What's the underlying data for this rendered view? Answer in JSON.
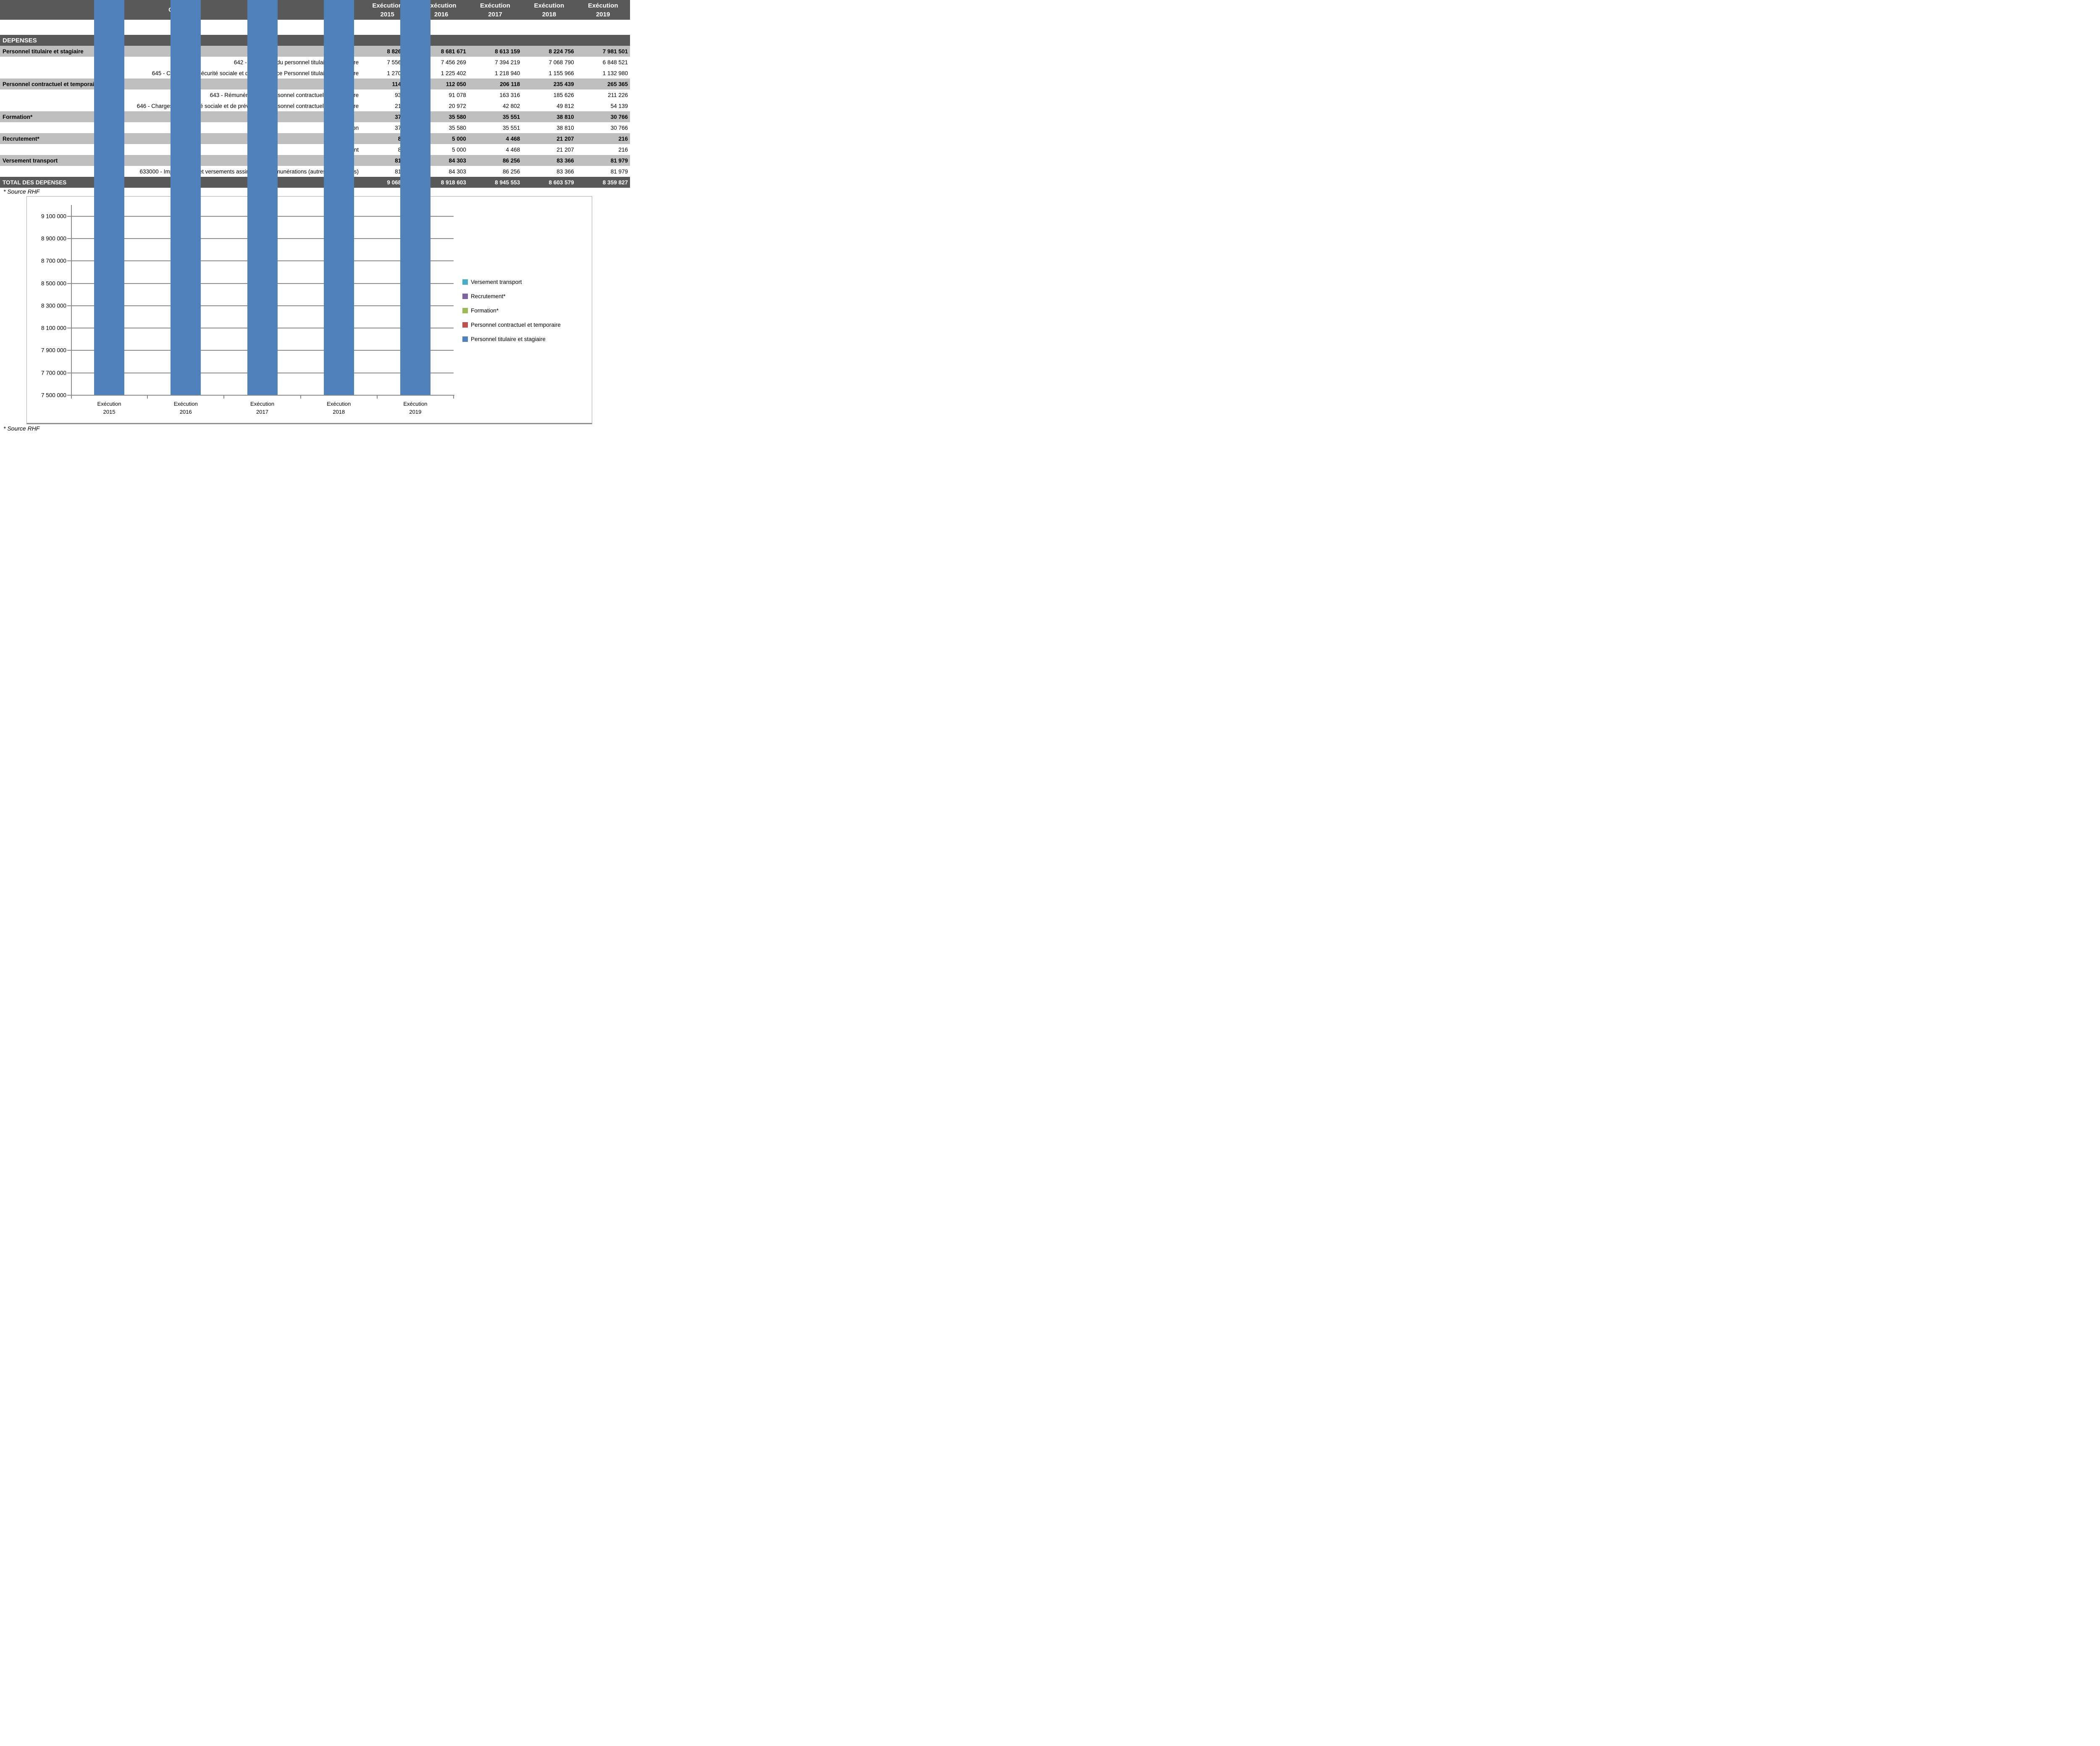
{
  "table": {
    "header": {
      "account_label": "Compte",
      "col_word": "Exécution",
      "years": [
        "2015",
        "2016",
        "2017",
        "2018",
        "2019"
      ]
    },
    "rows": [
      {
        "label": "DEPENSES",
        "type": "section",
        "values": [
          "",
          "",
          "",
          "",
          ""
        ]
      },
      {
        "label": "Personnel titulaire et stagiaire",
        "type": "category",
        "values": [
          "8 826 918",
          "8 681 671",
          "8 613 159",
          "8 224 756",
          "7 981 501"
        ]
      },
      {
        "label": "642 - Traitement du personnel titulaire et stagiaire",
        "type": "detail",
        "values": [
          "7 556 169",
          "7 456 269",
          "7 394 219",
          "7 068 790",
          "6 848 521"
        ]
      },
      {
        "label": "645 - Charges de Sécurité sociale et de prévoyance Personnel titulaire et stagiaire",
        "type": "detail",
        "values": [
          "1 270 749",
          "1 225 402",
          "1 218 940",
          "1 155 966",
          "1 132 980"
        ]
      },
      {
        "label": "Personnel contractuel et temporaire",
        "type": "category",
        "values": [
          "114 754",
          "112 050",
          "206 118",
          "235 439",
          "265 365"
        ]
      },
      {
        "label": "643 - Rémunération du personnel contractuel et temporaire",
        "type": "detail",
        "values": [
          "93 182",
          "91 078",
          "163 316",
          "185 626",
          "211 226"
        ]
      },
      {
        "label": "646 - Charges de Sécurité sociale et de prévoyance Personnel contractuel et temporaire",
        "type": "detail",
        "values": [
          "21 572",
          "20 972",
          "42 802",
          "49 812",
          "54 139"
        ]
      },
      {
        "label": "Formation*",
        "type": "category",
        "values": [
          "37 376",
          "35 580",
          "35 551",
          "38 810",
          "30 766"
        ]
      },
      {
        "label": "Formation",
        "type": "detail",
        "values": [
          "37 376",
          "35 580",
          "35 551",
          "38 810",
          "30 766"
        ]
      },
      {
        "label": "Recrutement*",
        "type": "category",
        "values": [
          "8 038",
          "5 000",
          "4 468",
          "21 207",
          "216"
        ]
      },
      {
        "label": "Recrutement",
        "type": "detail",
        "values": [
          "8 038",
          "5 000",
          "4 468",
          "21 207",
          "216"
        ]
      },
      {
        "label": "Versement transport",
        "type": "category",
        "values": [
          "81 778",
          "84 303",
          "86 256",
          "83 366",
          "81 979"
        ]
      },
      {
        "label": "633000 - Impôts, taxes et versements assimilés sur rémunérations (autres organismes)",
        "type": "detail",
        "values": [
          "81 778",
          "84 303",
          "86 256",
          "83 366",
          "81 979"
        ]
      },
      {
        "label": "TOTAL DES DEPENSES",
        "type": "total",
        "values": [
          "9 068 863",
          "8 918 603",
          "8 945 553",
          "8 603 579",
          "8 359 827"
        ]
      }
    ]
  },
  "source_note": "* Source RHF",
  "colors": {
    "header_bg": "#595959",
    "header_text": "#FFFFFF",
    "category_bg": "#BFBFBF",
    "grid": "#8A8A8A"
  },
  "chart_data": {
    "type": "bar",
    "stacked": true,
    "categories": [
      "Exécution 2015",
      "Exécution 2016",
      "Exécution 2017",
      "Exécution 2018",
      "Exécution 2019"
    ],
    "series": [
      {
        "name": "Personnel titulaire et stagiaire",
        "color": "#4F81BD",
        "values": [
          8826918,
          8681671,
          8613159,
          8224756,
          7981501
        ]
      },
      {
        "name": "Personnel contractuel et temporaire",
        "color": "#C0504D",
        "values": [
          114754,
          112050,
          206118,
          235439,
          265365
        ]
      },
      {
        "name": "Formation*",
        "color": "#9BBB59",
        "values": [
          37376,
          35580,
          35551,
          38810,
          30766
        ]
      },
      {
        "name": "Recrutement*",
        "color": "#8064A2",
        "values": [
          8038,
          5000,
          4468,
          21207,
          216
        ]
      },
      {
        "name": "Versement transport",
        "color": "#4BACC6",
        "values": [
          81778,
          84303,
          86256,
          83366,
          81979
        ]
      }
    ],
    "stack_totals": [
      9068863,
      8918603,
      8945553,
      8603579,
      8359827
    ],
    "title": "",
    "xlabel": "",
    "ylabel": "",
    "ylim": [
      7500000,
      9200000
    ],
    "ytick_start": 7500000,
    "ytick_step": 200000,
    "ytick_end": 9100000,
    "grid": true,
    "legend_position": "right",
    "legend_order": [
      "Versement transport",
      "Recrutement*",
      "Formation*",
      "Personnel contractuel et temporaire",
      "Personnel titulaire et stagiaire"
    ]
  }
}
